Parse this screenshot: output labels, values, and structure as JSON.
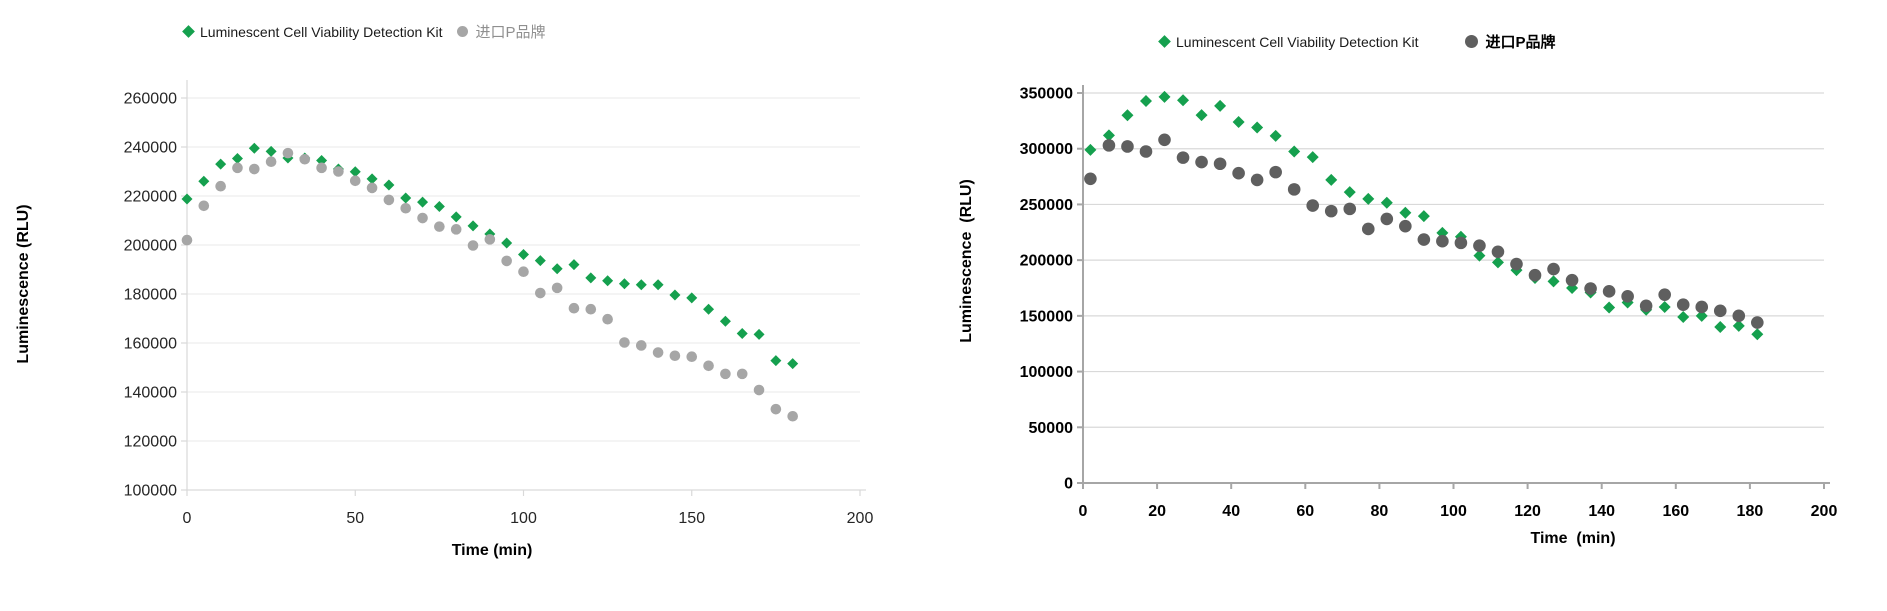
{
  "figure": {
    "background": "#ffffff",
    "green_accent": "#15a04e",
    "light_gray_accent": "#a6a6a6",
    "dark_gray_accent": "#5f5f5f"
  },
  "chart_data": [
    {
      "type": "scatter",
      "title": "",
      "xlabel": "Time (min)",
      "ylabel": "Luminescence (RLU)",
      "x_range": [
        0,
        200
      ],
      "y_range": [
        100000,
        260000
      ],
      "xticks": [
        0,
        50,
        100,
        150,
        200
      ],
      "yticks": [
        100000,
        120000,
        140000,
        160000,
        180000,
        200000,
        220000,
        240000,
        260000
      ],
      "grid": "horizontal",
      "legend_position": "top",
      "series": [
        {
          "name": "Luminescent Cell Viability Detection Kit",
          "marker": "diamond",
          "color": "#15a04e",
          "x": [
            0,
            5,
            10,
            15,
            20,
            25,
            30,
            35,
            40,
            45,
            50,
            55,
            60,
            65,
            70,
            75,
            80,
            85,
            90,
            95,
            100,
            105,
            110,
            115,
            120,
            125,
            130,
            135,
            140,
            145,
            150,
            155,
            160,
            165,
            170,
            175,
            180
          ],
          "y": [
            218800,
            226000,
            233000,
            235300,
            239500,
            238200,
            235500,
            235500,
            234500,
            231000,
            229900,
            227000,
            224500,
            219200,
            217500,
            215700,
            211500,
            207800,
            204500,
            200800,
            196100,
            193600,
            190300,
            192000,
            186600,
            185400,
            184200,
            183800,
            183800,
            179600,
            178400,
            173800,
            168900,
            163900,
            163500,
            152800,
            151600
          ]
        },
        {
          "name": "进口P品牌",
          "marker": "circle",
          "color": "#a6a6a6",
          "x": [
            0,
            5,
            10,
            15,
            20,
            25,
            30,
            35,
            40,
            45,
            50,
            55,
            60,
            65,
            70,
            75,
            80,
            85,
            90,
            95,
            100,
            105,
            110,
            115,
            120,
            125,
            130,
            135,
            140,
            145,
            150,
            155,
            160,
            165,
            170,
            175,
            180
          ],
          "y": [
            202000,
            216000,
            224000,
            231500,
            231000,
            234000,
            237500,
            235000,
            231500,
            230000,
            226200,
            223300,
            218400,
            215000,
            211000,
            207500,
            206400,
            199800,
            202300,
            193500,
            189100,
            180400,
            182500,
            174200,
            173800,
            169700,
            160200,
            159000,
            156100,
            154800,
            154400,
            150700,
            147400,
            147400,
            140800,
            133000,
            130100
          ]
        }
      ]
    },
    {
      "type": "scatter",
      "title": "",
      "xlabel": "Time  (min)",
      "ylabel": "Luminescence  (RLU)",
      "x_range": [
        0,
        200
      ],
      "y_range": [
        0,
        350000
      ],
      "xticks": [
        0,
        20,
        40,
        60,
        80,
        100,
        120,
        140,
        160,
        180,
        200
      ],
      "yticks": [
        0,
        50000,
        100000,
        150000,
        200000,
        250000,
        300000,
        350000
      ],
      "grid": "horizontal",
      "legend_position": "top",
      "series": [
        {
          "name": "Luminescent Cell Viability Detection Kit",
          "marker": "diamond",
          "color": "#15a04e",
          "x": [
            2,
            7,
            12,
            17,
            22,
            27,
            32,
            37,
            42,
            47,
            52,
            57,
            62,
            67,
            72,
            77,
            82,
            87,
            92,
            97,
            102,
            107,
            112,
            117,
            122,
            127,
            132,
            137,
            142,
            147,
            152,
            157,
            162,
            167,
            172,
            177,
            182
          ],
          "y": [
            299000,
            312000,
            330000,
            342800,
            346500,
            343500,
            330200,
            338500,
            324000,
            319000,
            311500,
            297500,
            292500,
            272000,
            261000,
            255000,
            251500,
            242500,
            239500,
            224500,
            221000,
            204000,
            198000,
            191000,
            184000,
            181000,
            175000,
            171000,
            157500,
            162000,
            155500,
            158000,
            149000,
            150000,
            140000,
            141000,
            133500
          ]
        },
        {
          "name": "进口P品牌",
          "marker": "circle",
          "color": "#5f5f5f",
          "x": [
            2,
            7,
            12,
            17,
            22,
            27,
            32,
            37,
            42,
            47,
            52,
            57,
            62,
            67,
            72,
            77,
            82,
            87,
            92,
            97,
            102,
            107,
            112,
            117,
            122,
            127,
            132,
            137,
            142,
            147,
            152,
            157,
            162,
            167,
            172,
            177,
            182
          ],
          "y": [
            273000,
            303000,
            302000,
            297500,
            308000,
            292000,
            288000,
            286500,
            278000,
            272000,
            279000,
            263500,
            249000,
            244000,
            246000,
            228000,
            237000,
            230500,
            218500,
            217000,
            215500,
            213000,
            207500,
            196500,
            186500,
            192000,
            182000,
            174500,
            172000,
            167500,
            159000,
            169000,
            160000,
            158000,
            154500,
            150000,
            144000
          ]
        }
      ]
    }
  ]
}
